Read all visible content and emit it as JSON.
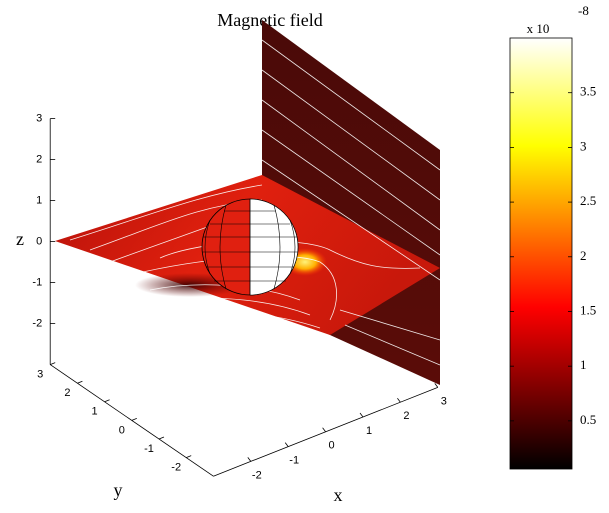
{
  "chart_data": {
    "type": "slice3d",
    "title": "Magnetic field",
    "xlabel": "x",
    "ylabel": "y",
    "zlabel": "z",
    "xlim": [
      -3,
      3
    ],
    "ylim": [
      -3,
      3
    ],
    "zlim": [
      -3,
      3
    ],
    "xticks": [
      -2,
      -1,
      0,
      1,
      2,
      3
    ],
    "yticks": [
      -2,
      -1,
      0,
      1,
      2,
      3
    ],
    "zticks": [
      -2,
      -1,
      0,
      1,
      2,
      3
    ],
    "colorbar": {
      "clim": [
        0.06,
        4
      ],
      "ticks": [
        0.5,
        1,
        1.5,
        2,
        2.5,
        3,
        3.5
      ],
      "multiplier": "x 10",
      "exponent": "-8",
      "colormap": "hot"
    }
  }
}
